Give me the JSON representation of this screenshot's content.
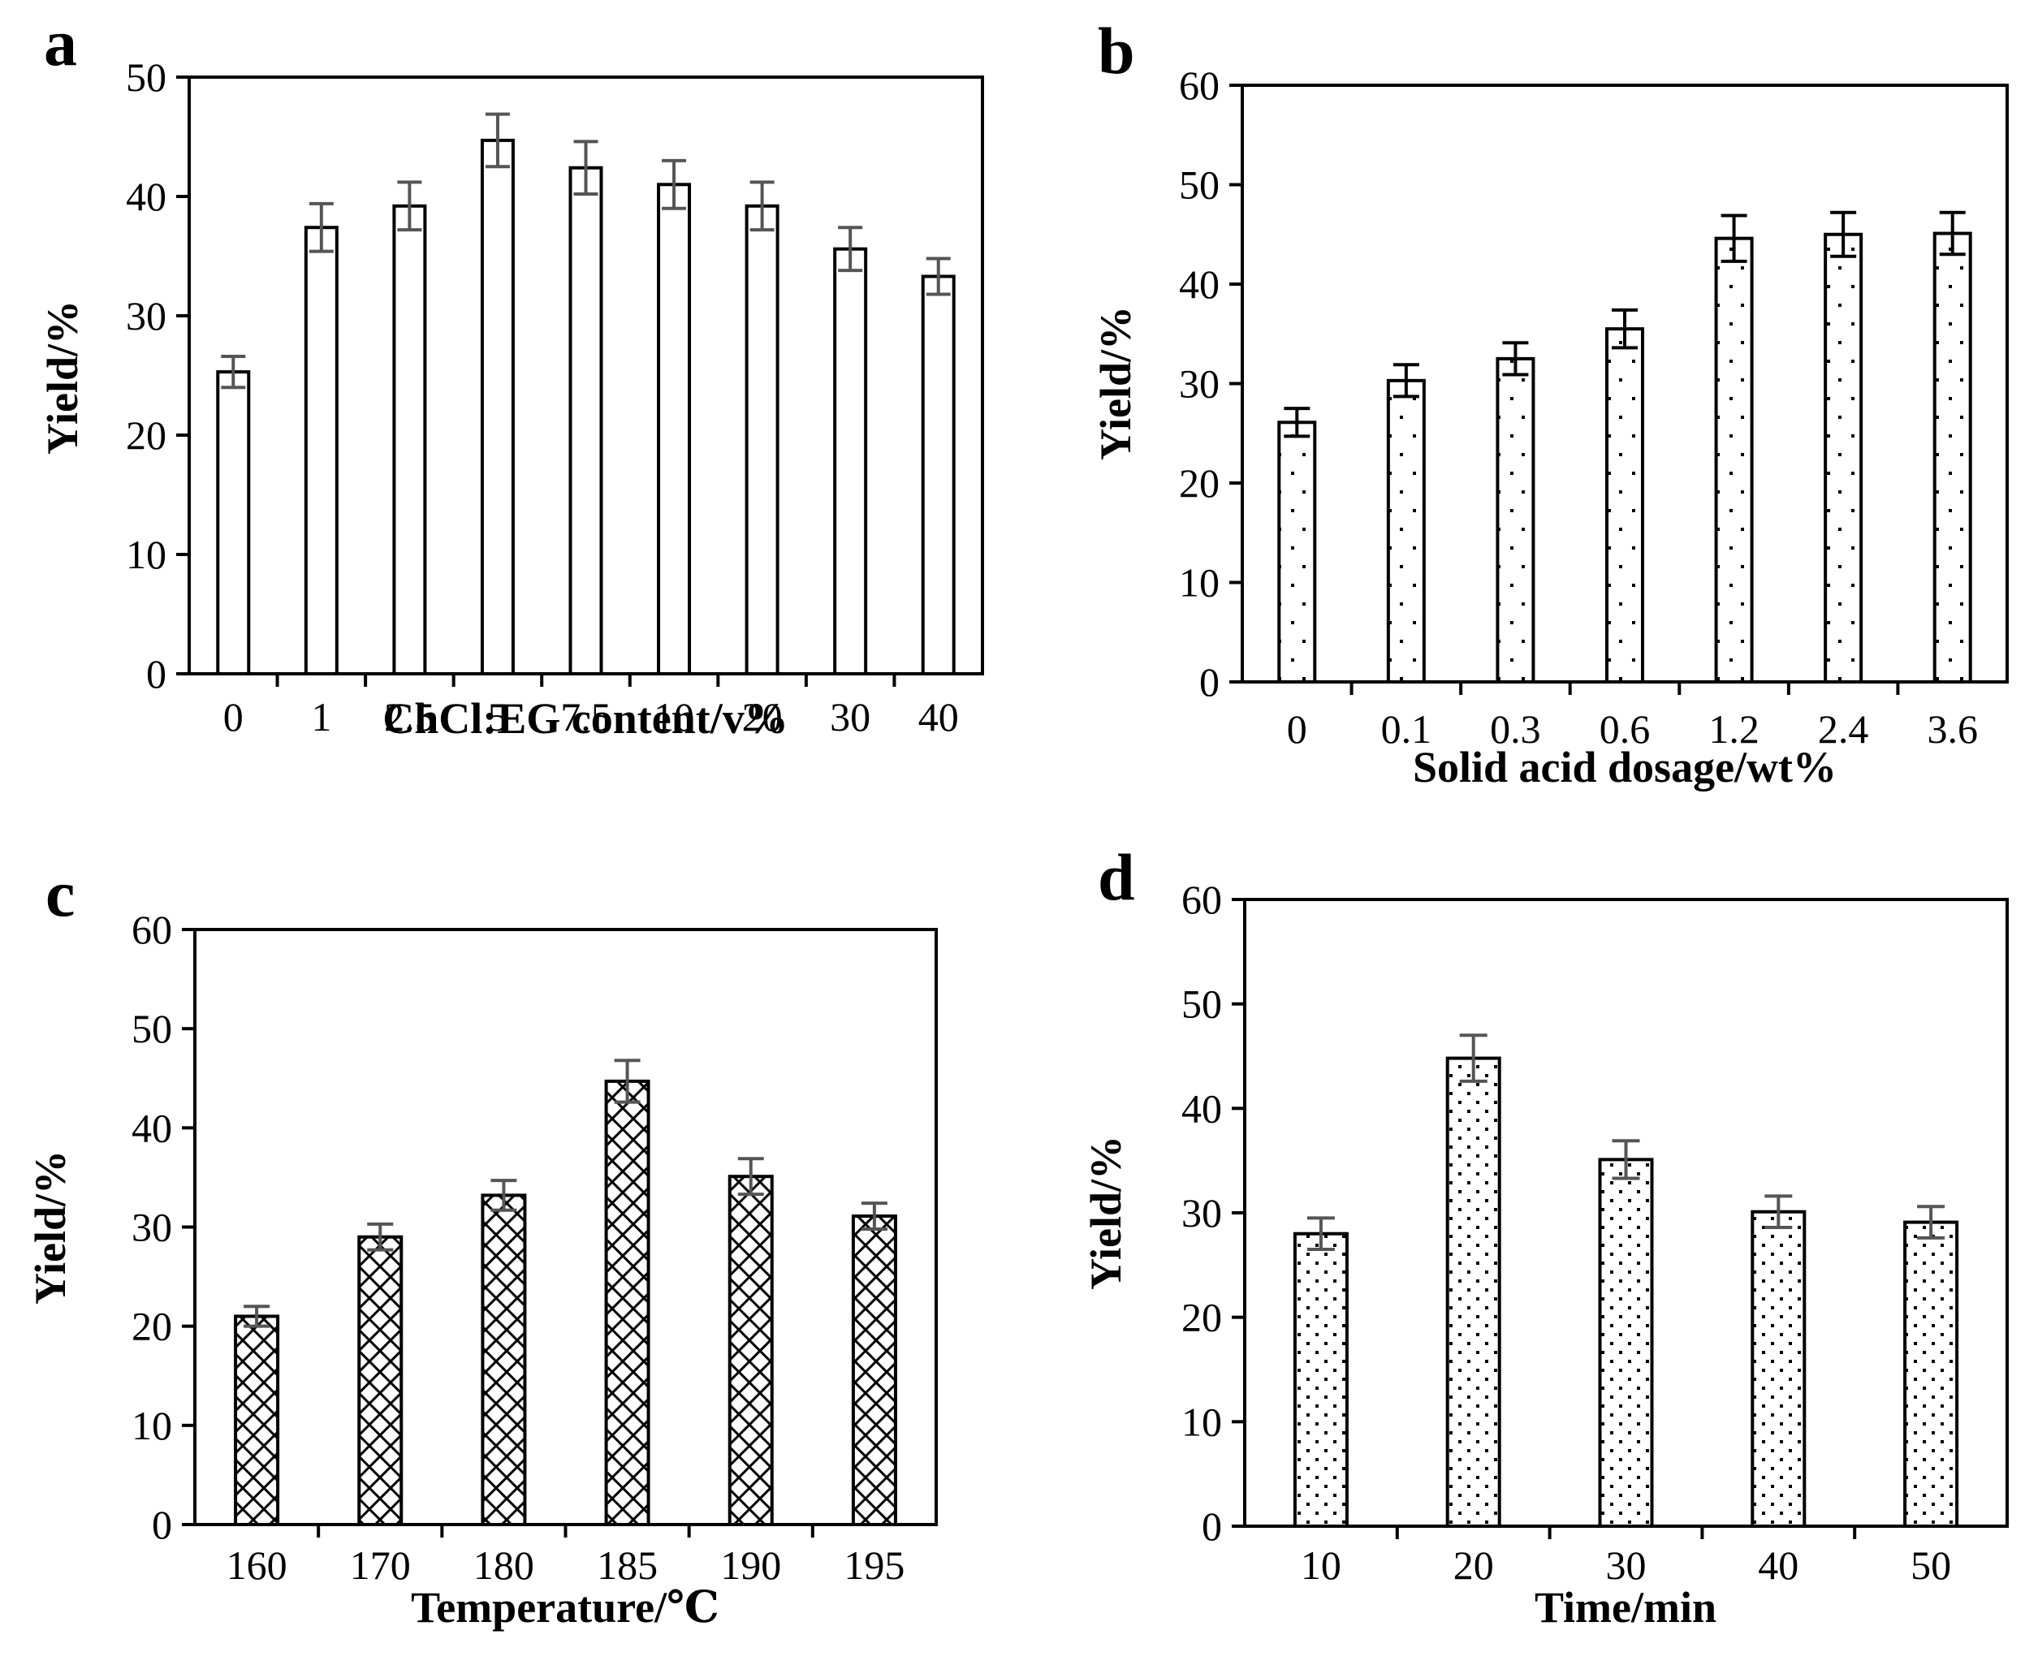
{
  "chart_data": [
    {
      "panel": "a",
      "type": "bar",
      "categories": [
        "0",
        "1",
        "2.5",
        "5",
        "7.5",
        "10",
        "20",
        "30",
        "40"
      ],
      "values": [
        25.3,
        37.4,
        39.2,
        44.7,
        42.4,
        41.0,
        39.2,
        35.6,
        33.3
      ],
      "errors": [
        1.3,
        2.0,
        2.0,
        2.2,
        2.2,
        2.0,
        2.0,
        1.8,
        1.5
      ],
      "xlabel": "ChCl:EG content/v%",
      "ylabel": "Yield/%",
      "ylim": [
        0,
        50
      ],
      "yticks": [
        0,
        10,
        20,
        30,
        40,
        50
      ],
      "fill_pattern": "none",
      "error_color": "#555555"
    },
    {
      "panel": "b",
      "type": "bar",
      "categories": [
        "0",
        "0.1",
        "0.3",
        "0.6",
        "1.2",
        "2.4",
        "3.6"
      ],
      "values": [
        26.1,
        30.3,
        32.5,
        35.5,
        44.6,
        45.0,
        45.1
      ],
      "errors": [
        1.4,
        1.6,
        1.6,
        1.9,
        2.3,
        2.2,
        2.1
      ],
      "xlabel": "Solid acid dosage/wt%",
      "ylabel": "Yield/%",
      "ylim": [
        0,
        60
      ],
      "yticks": [
        0,
        10,
        20,
        30,
        40,
        50,
        60
      ],
      "fill_pattern": "sparse-dots",
      "error_color": "#000000"
    },
    {
      "panel": "c",
      "type": "bar",
      "categories": [
        "160",
        "170",
        "180",
        "185",
        "190",
        "195"
      ],
      "values": [
        21.0,
        29.0,
        33.2,
        44.7,
        35.1,
        31.1
      ],
      "errors": [
        1.0,
        1.3,
        1.5,
        2.1,
        1.8,
        1.3
      ],
      "xlabel": "Temperature/℃",
      "ylabel": "Yield/%",
      "ylim": [
        0,
        60
      ],
      "yticks": [
        0,
        10,
        20,
        30,
        40,
        50,
        60
      ],
      "fill_pattern": "crosshatch",
      "error_color": "#555555"
    },
    {
      "panel": "d",
      "type": "bar",
      "categories": [
        "10",
        "20",
        "30",
        "40",
        "50"
      ],
      "values": [
        28.0,
        44.8,
        35.1,
        30.1,
        29.1
      ],
      "errors": [
        1.5,
        2.2,
        1.8,
        1.5,
        1.5
      ],
      "xlabel": "Time/min",
      "ylabel": "Yield/%",
      "ylim": [
        0,
        60
      ],
      "yticks": [
        0,
        10,
        20,
        30,
        40,
        50,
        60
      ],
      "fill_pattern": "dense-dots",
      "error_color": "#555555"
    }
  ]
}
